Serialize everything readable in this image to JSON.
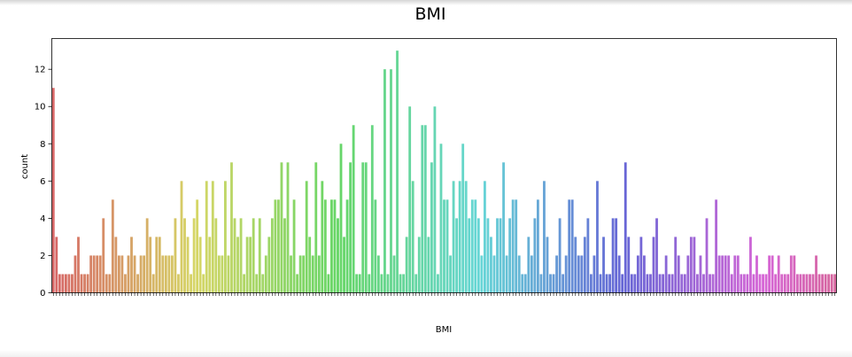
{
  "chart_data": {
    "type": "bar",
    "title": "BMI",
    "xlabel": "BMI",
    "ylabel": "count",
    "ylim": [
      0,
      13.65
    ],
    "yticks": [
      0,
      2,
      4,
      6,
      8,
      10,
      12
    ],
    "grid": false,
    "legend": "none",
    "palette_hue_start": 0,
    "palette_hue_end": 330,
    "values": [
      11,
      3,
      1,
      1,
      1,
      1,
      1,
      2,
      3,
      1,
      1,
      1,
      2,
      2,
      2,
      2,
      4,
      1,
      1,
      5,
      3,
      2,
      2,
      1,
      2,
      3,
      2,
      1,
      2,
      2,
      4,
      3,
      1,
      3,
      3,
      2,
      2,
      2,
      2,
      4,
      1,
      6,
      4,
      3,
      1,
      4,
      5,
      3,
      1,
      6,
      3,
      6,
      4,
      2,
      2,
      6,
      2,
      7,
      4,
      3,
      4,
      1,
      3,
      3,
      4,
      1,
      4,
      1,
      2,
      3,
      4,
      5,
      5,
      7,
      4,
      7,
      2,
      5,
      1,
      2,
      2,
      6,
      3,
      2,
      7,
      2,
      6,
      5,
      1,
      5,
      5,
      4,
      8,
      3,
      5,
      7,
      9,
      1,
      1,
      7,
      7,
      1,
      9,
      5,
      2,
      1,
      12,
      1,
      12,
      2,
      13,
      1,
      1,
      3,
      10,
      6,
      1,
      3,
      9,
      9,
      3,
      7,
      10,
      1,
      8,
      5,
      5,
      2,
      6,
      4,
      6,
      8,
      6,
      4,
      5,
      5,
      4,
      2,
      6,
      4,
      3,
      2,
      4,
      4,
      7,
      2,
      4,
      5,
      5,
      2,
      1,
      1,
      3,
      2,
      4,
      5,
      1,
      6,
      3,
      1,
      1,
      2,
      4,
      1,
      2,
      5,
      5,
      3,
      2,
      2,
      3,
      4,
      1,
      2,
      6,
      1,
      3,
      1,
      1,
      4,
      4,
      2,
      1,
      7,
      3,
      1,
      1,
      2,
      3,
      2,
      1,
      1,
      3,
      4,
      1,
      1,
      2,
      1,
      1,
      3,
      2,
      1,
      1,
      2,
      3,
      3,
      1,
      2,
      1,
      4,
      1,
      1,
      5,
      2,
      2,
      2,
      2,
      1,
      2,
      2,
      1,
      1,
      1,
      3,
      1,
      2,
      1,
      1,
      1,
      2,
      2,
      1,
      2,
      1,
      1,
      1,
      2,
      2,
      1,
      1,
      1,
      1,
      1,
      1,
      2,
      1,
      1,
      1,
      1,
      1,
      1
    ]
  }
}
